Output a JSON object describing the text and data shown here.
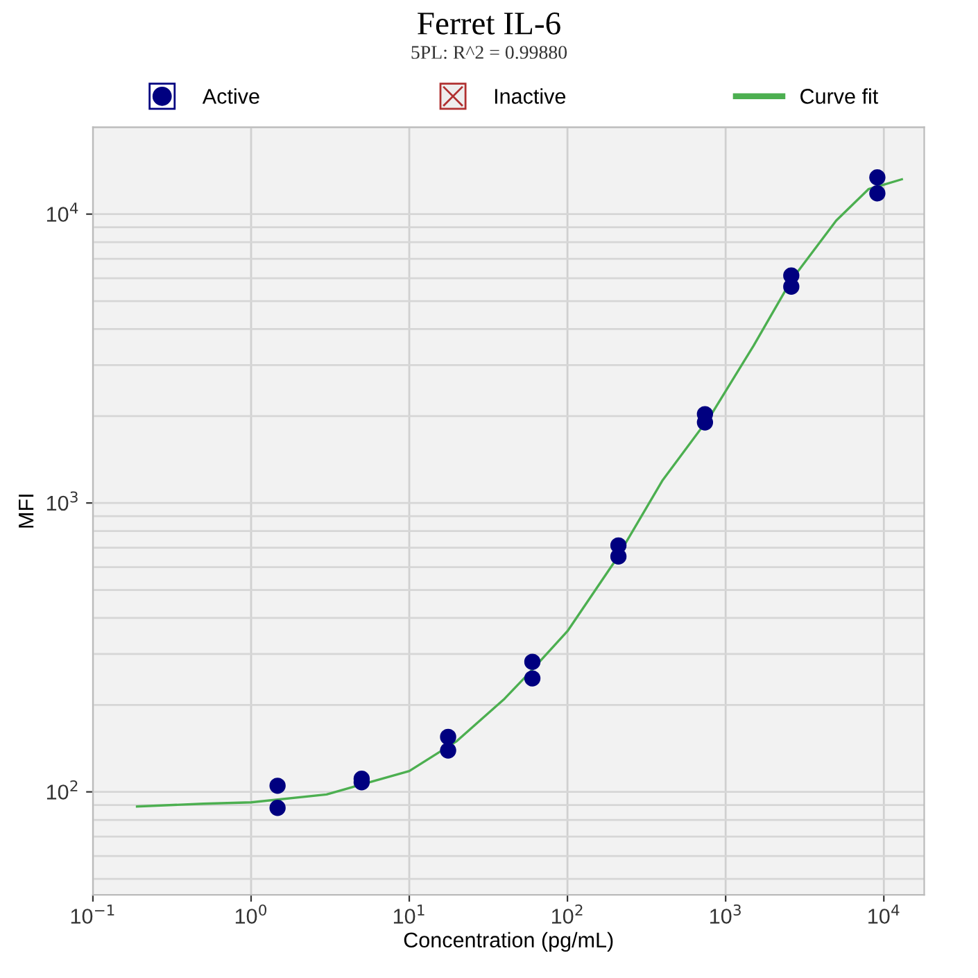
{
  "chart_data": {
    "type": "scatter",
    "title": "Ferret IL-6",
    "subtitle": "5PL: R^2 = 0.99880",
    "xlabel": "Concentration (pg/mL)",
    "ylabel": "MFI",
    "log": "xy",
    "xlim": [
      0.1,
      18000
    ],
    "ylim": [
      44,
      20000
    ],
    "xticks": [
      {
        "value": 0.1,
        "label": "10$^{−1}$"
      },
      {
        "value": 1,
        "label": "10$^{0}$"
      },
      {
        "value": 10,
        "label": "10$^{1}$"
      },
      {
        "value": 100,
        "label": "10$^{2}$"
      },
      {
        "value": 1000,
        "label": "10$^{3}$"
      },
      {
        "value": 10000,
        "label": "10$^{4}$"
      }
    ],
    "yticks": [
      {
        "value": 100,
        "label": "10$^{2}$"
      },
      {
        "value": 1000,
        "label": "10$^{3}$"
      },
      {
        "value": 10000,
        "label": "10$^{4}$"
      }
    ],
    "grid": true,
    "legend": "top",
    "series": [
      {
        "name": "Active",
        "marker": "circle",
        "color": "#000080",
        "x": [
          1.47,
          1.47,
          5.0,
          5.0,
          17.6,
          17.6,
          60,
          60,
          210,
          210,
          740,
          740,
          2600,
          2600,
          9100,
          9100
        ],
        "values": [
          105,
          88,
          111,
          108,
          155,
          139,
          282,
          247,
          713,
          653,
          2030,
          1900,
          6130,
          5610,
          13400,
          11800
        ]
      },
      {
        "name": "Inactive",
        "type": "scatter",
        "marker": "cross",
        "color": "#b03030"
      },
      {
        "name": "Curve fit",
        "type": "line",
        "marker": "none",
        "color": "#4caf50",
        "x": [
          0.19,
          0.5,
          1,
          3,
          10,
          20,
          40,
          60,
          100,
          200,
          400,
          800,
          1500,
          2600,
          5000,
          8000,
          13000
        ],
        "values": [
          89,
          91,
          92,
          98,
          118,
          150,
          210,
          265,
          360,
          630,
          1200,
          2000,
          3500,
          5900,
          9500,
          12200,
          13200
        ]
      }
    ]
  }
}
